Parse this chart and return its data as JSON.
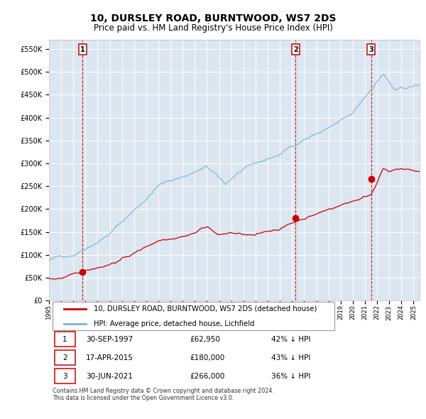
{
  "title": "10, DURSLEY ROAD, BURNTWOOD, WS7 2DS",
  "subtitle": "Price paid vs. HM Land Registry's House Price Index (HPI)",
  "title_fontsize": 10,
  "subtitle_fontsize": 8.5,
  "background_color": "#ffffff",
  "plot_bg_color": "#dce6f1",
  "grid_color": "#ffffff",
  "ylim": [
    0,
    570000
  ],
  "yticks": [
    0,
    50000,
    100000,
    150000,
    200000,
    250000,
    300000,
    350000,
    400000,
    450000,
    500000,
    550000
  ],
  "ytick_labels": [
    "£0",
    "£50K",
    "£100K",
    "£150K",
    "£200K",
    "£250K",
    "£300K",
    "£350K",
    "£400K",
    "£450K",
    "£500K",
    "£550K"
  ],
  "sale_dates_num": [
    1997.75,
    2015.29,
    2021.5
  ],
  "sale_prices": [
    62950,
    180000,
    266000
  ],
  "sale_labels": [
    "1",
    "2",
    "3"
  ],
  "hpi_line_color": "#7ab3d4",
  "price_line_color": "#cc0000",
  "dashed_line_color": "#cc0000",
  "marker_color": "#cc0000",
  "legend_red_label": "10, DURSLEY ROAD, BURNTWOOD, WS7 2DS (detached house)",
  "legend_blue_label": "HPI: Average price, detached house, Lichfield",
  "table_entries": [
    {
      "num": "1",
      "date": "30-SEP-1997",
      "price": "£62,950",
      "pct": "42% ↓ HPI"
    },
    {
      "num": "2",
      "date": "17-APR-2015",
      "price": "£180,000",
      "pct": "43% ↓ HPI"
    },
    {
      "num": "3",
      "date": "30-JUN-2021",
      "price": "£266,000",
      "pct": "36% ↓ HPI"
    }
  ],
  "footer": "Contains HM Land Registry data © Crown copyright and database right 2024.\nThis data is licensed under the Open Government Licence v3.0."
}
